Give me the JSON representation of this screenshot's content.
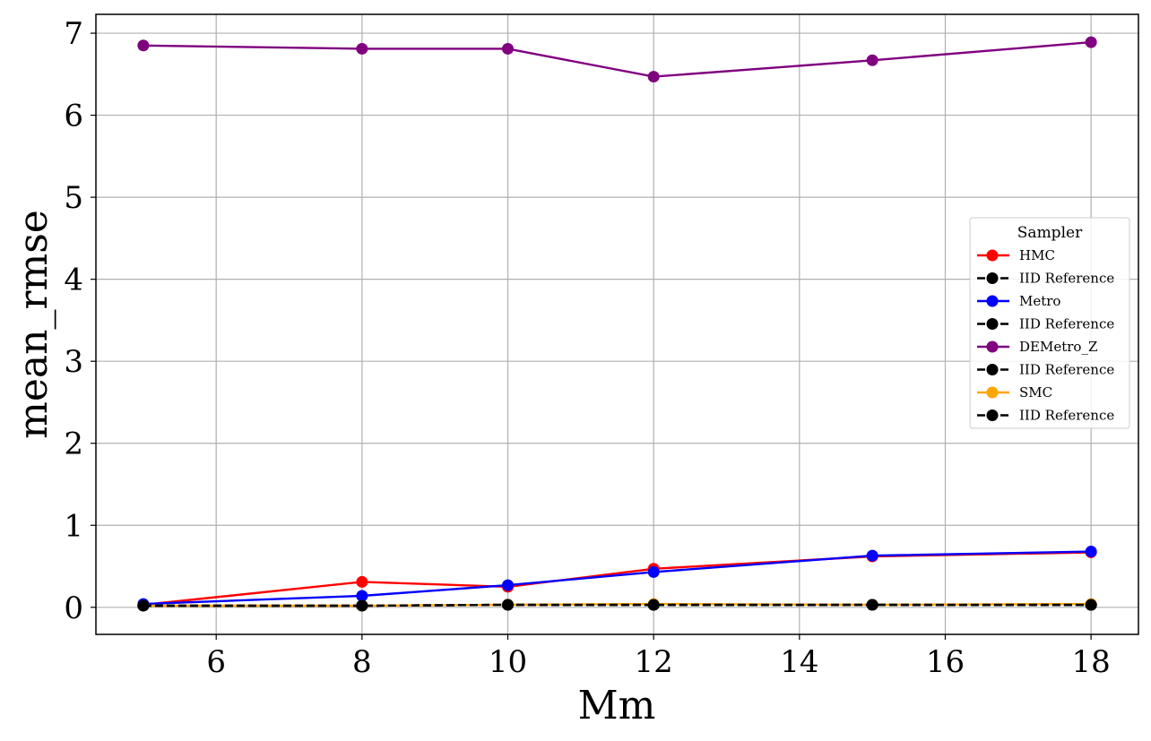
{
  "chart_data": {
    "type": "line",
    "xlabel": "Mm",
    "ylabel": "mean_rmse",
    "xlim": [
      4.35,
      18.65
    ],
    "ylim": [
      -0.33,
      7.23
    ],
    "x_ticks": [
      6,
      8,
      10,
      12,
      14,
      16,
      18
    ],
    "y_ticks": [
      0,
      1,
      2,
      3,
      4,
      5,
      6,
      7
    ],
    "x": [
      5,
      8,
      10,
      12,
      15,
      18
    ],
    "grid": true,
    "legend": {
      "title": "Sampler",
      "placement": "center-right"
    },
    "series": [
      {
        "name": "HMC",
        "color": "#ff0000",
        "style": "solid",
        "values": [
          0.03,
          0.31,
          0.25,
          0.47,
          0.62,
          0.67
        ]
      },
      {
        "name": "IID Reference",
        "color": "#000000",
        "style": "dashed",
        "values": [
          0.02,
          0.02,
          0.03,
          0.03,
          0.03,
          0.03
        ]
      },
      {
        "name": "Metro",
        "color": "#0000ff",
        "style": "solid",
        "values": [
          0.04,
          0.14,
          0.27,
          0.43,
          0.63,
          0.68
        ]
      },
      {
        "name": "IID Reference",
        "color": "#000000",
        "style": "dashed",
        "values": [
          0.02,
          0.02,
          0.03,
          0.03,
          0.03,
          0.03
        ]
      },
      {
        "name": "DEMetro_Z",
        "color": "#800080",
        "style": "solid",
        "values": [
          6.85,
          6.81,
          6.81,
          6.47,
          6.67,
          6.89
        ]
      },
      {
        "name": "IID Reference",
        "color": "#000000",
        "style": "dashed",
        "values": [
          0.02,
          0.02,
          0.03,
          0.03,
          0.03,
          0.03
        ]
      },
      {
        "name": "SMC",
        "color": "#ffa500",
        "style": "solid",
        "values": [
          0.02,
          0.02,
          0.03,
          0.04,
          0.03,
          0.04
        ]
      },
      {
        "name": "IID Reference",
        "color": "#000000",
        "style": "dashed",
        "values": [
          0.02,
          0.02,
          0.03,
          0.03,
          0.03,
          0.03
        ]
      }
    ]
  }
}
